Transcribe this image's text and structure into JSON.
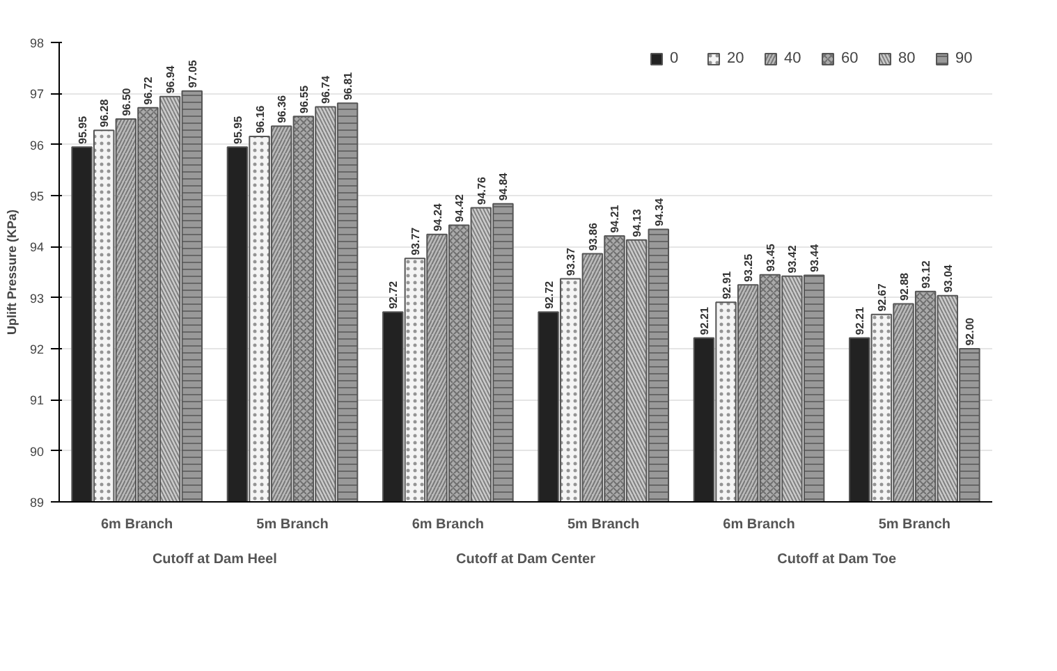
{
  "chart_data": {
    "type": "bar",
    "ylabel": "Uplift Pressure (KPa)",
    "categories": [
      "6m Branch",
      "5m Branch",
      "6m Branch",
      "5m Branch",
      "6m Branch",
      "5m Branch"
    ],
    "annotations": [
      "Cutoff at Dam Heel",
      "Cutoff at Dam Center",
      "Cutoff at Dam Toe"
    ],
    "series": [
      {
        "name": "0",
        "color": "#222222",
        "values": [
          95.95,
          95.95,
          92.72,
          92.72,
          92.21,
          92.21
        ],
        "value_labels": [
          "95.95",
          "95.95",
          "92.72",
          "92.72",
          "92.21",
          "92.21"
        ]
      },
      {
        "name": "20",
        "color": "#f4f4f4",
        "values": [
          96.28,
          96.16,
          93.77,
          93.37,
          92.91,
          92.67
        ],
        "value_labels": [
          "96.28",
          "96.16",
          "93.77",
          "93.37",
          "92.91",
          "92.67"
        ]
      },
      {
        "name": "40",
        "color": "#bbbbbb",
        "values": [
          96.5,
          96.36,
          94.24,
          93.86,
          93.25,
          92.88
        ],
        "value_labels": [
          "96.50",
          "96.36",
          "94.24",
          "93.86",
          "93.25",
          "92.88"
        ]
      },
      {
        "name": "60",
        "color": "#aaaaaa",
        "values": [
          96.72,
          96.55,
          94.42,
          94.21,
          93.45,
          93.12
        ],
        "value_labels": [
          "96.72",
          "96.55",
          "94.42",
          "94.21",
          "93.45",
          "93.12"
        ]
      },
      {
        "name": "80",
        "color": "#cccccc",
        "values": [
          96.94,
          96.74,
          94.76,
          94.13,
          93.42,
          93.04
        ],
        "value_labels": [
          "96.94",
          "96.74",
          "94.76",
          "94.13",
          "93.42",
          "93.04"
        ]
      },
      {
        "name": "90",
        "color": "#999999",
        "values": [
          97.05,
          96.81,
          94.84,
          94.34,
          93.44,
          92.0
        ],
        "value_labels": [
          "97.05",
          "96.81",
          "94.84",
          "94.34",
          "93.44",
          "92.00"
        ]
      }
    ],
    "ylim": [
      89,
      98
    ],
    "yticks": [
      89,
      90,
      91,
      92,
      93,
      94,
      95,
      96,
      97,
      98
    ],
    "grid": "y",
    "legend": "top right"
  }
}
